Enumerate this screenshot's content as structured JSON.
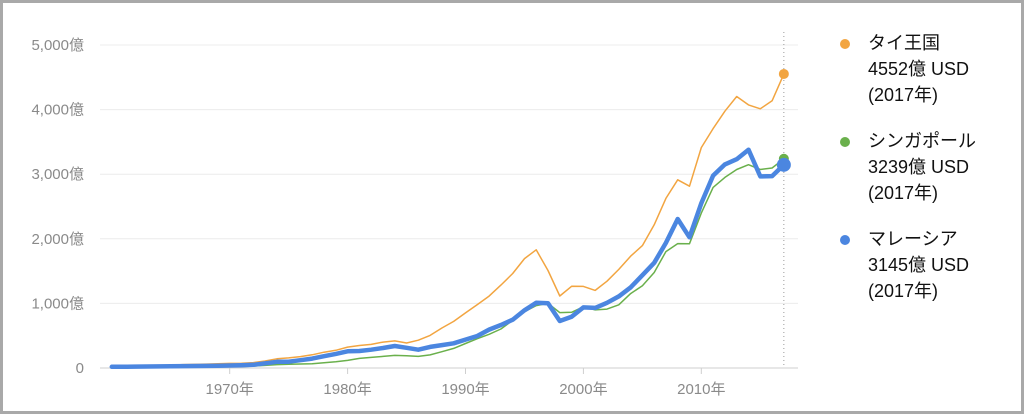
{
  "chart_data": {
    "type": "line",
    "x": [
      1960,
      1961,
      1962,
      1963,
      1964,
      1965,
      1966,
      1967,
      1968,
      1969,
      1970,
      1971,
      1972,
      1973,
      1974,
      1975,
      1976,
      1977,
      1978,
      1979,
      1980,
      1981,
      1982,
      1983,
      1984,
      1985,
      1986,
      1987,
      1988,
      1989,
      1990,
      1991,
      1992,
      1993,
      1994,
      1995,
      1996,
      1997,
      1998,
      1999,
      2000,
      2001,
      2002,
      2003,
      2004,
      2005,
      2006,
      2007,
      2008,
      2009,
      2010,
      2011,
      2012,
      2013,
      2014,
      2015,
      2016,
      2017
    ],
    "x_ticks": [
      1970,
      1980,
      1990,
      2000,
      2010
    ],
    "x_tick_labels": [
      "1970年",
      "1980年",
      "1990年",
      "2000年",
      "2010年"
    ],
    "y_ticks": [
      0,
      1000,
      2000,
      3000,
      4000,
      5000
    ],
    "y_tick_labels": [
      "0",
      "1,000億",
      "2,000億",
      "3,000億",
      "4,000億",
      "5,000億"
    ],
    "xlim": [
      1959,
      2018.2
    ],
    "ylim": [
      0,
      5000
    ],
    "grid": true,
    "legend_position": "right",
    "marker_x": 2017,
    "series": [
      {
        "name": "タイ王国",
        "color": "#f2a541",
        "width": 1.5,
        "values": [
          27,
          31,
          33,
          36,
          39,
          44,
          53,
          56,
          61,
          67,
          71,
          75,
          84,
          109,
          143,
          156,
          176,
          205,
          245,
          274,
          324,
          349,
          365,
          401,
          420,
          387,
          431,
          505,
          619,
          722,
          853,
          982,
          1113,
          1283,
          1463,
          1694,
          1830,
          1509,
          1114,
          1265,
          1263,
          1201,
          1343,
          1527,
          1731,
          1894,
          2217,
          2626,
          2913,
          2814,
          3412,
          3706,
          3976,
          4203,
          4073,
          4012,
          4136,
          4552
        ]
      },
      {
        "name": "シンガポール",
        "color": "#6ab04c",
        "width": 1.5,
        "values": [
          7,
          8,
          9,
          10,
          10,
          10,
          11,
          13,
          14,
          17,
          19,
          23,
          29,
          41,
          53,
          58,
          62,
          67,
          80,
          96,
          118,
          148,
          164,
          179,
          195,
          191,
          180,
          203,
          253,
          303,
          380,
          454,
          521,
          603,
          738,
          871,
          966,
          1001,
          857,
          863,
          947,
          899,
          911,
          979,
          1151,
          1273,
          1479,
          1802,
          1925,
          1924,
          2398,
          2795,
          2950,
          3073,
          3147,
          3072,
          3096,
          3239
        ]
      },
      {
        "name": "マレーシア",
        "color": "#4b86e0",
        "width": 4.5,
        "values": [
          19,
          19,
          21,
          23,
          25,
          28,
          30,
          31,
          32,
          35,
          39,
          43,
          49,
          73,
          96,
          98,
          120,
          145,
          182,
          219,
          259,
          263,
          283,
          310,
          341,
          313,
          284,
          327,
          355,
          382,
          440,
          495,
          595,
          666,
          747,
          893,
          1009,
          1001,
          727,
          793,
          938,
          930,
          1010,
          1109,
          1247,
          1436,
          1628,
          1937,
          2307,
          2023,
          2550,
          2979,
          3151,
          3232,
          3380,
          2966,
          2971,
          3145
        ]
      }
    ],
    "legend": [
      {
        "name": "タイ王国",
        "value_text": "4552億 USD",
        "year_text": "(2017年)"
      },
      {
        "name": "シンガポール",
        "value_text": "3239億 USD",
        "year_text": "(2017年)"
      },
      {
        "name": "マレーシア",
        "value_text": "3145億 USD",
        "year_text": "(2017年)"
      }
    ]
  }
}
